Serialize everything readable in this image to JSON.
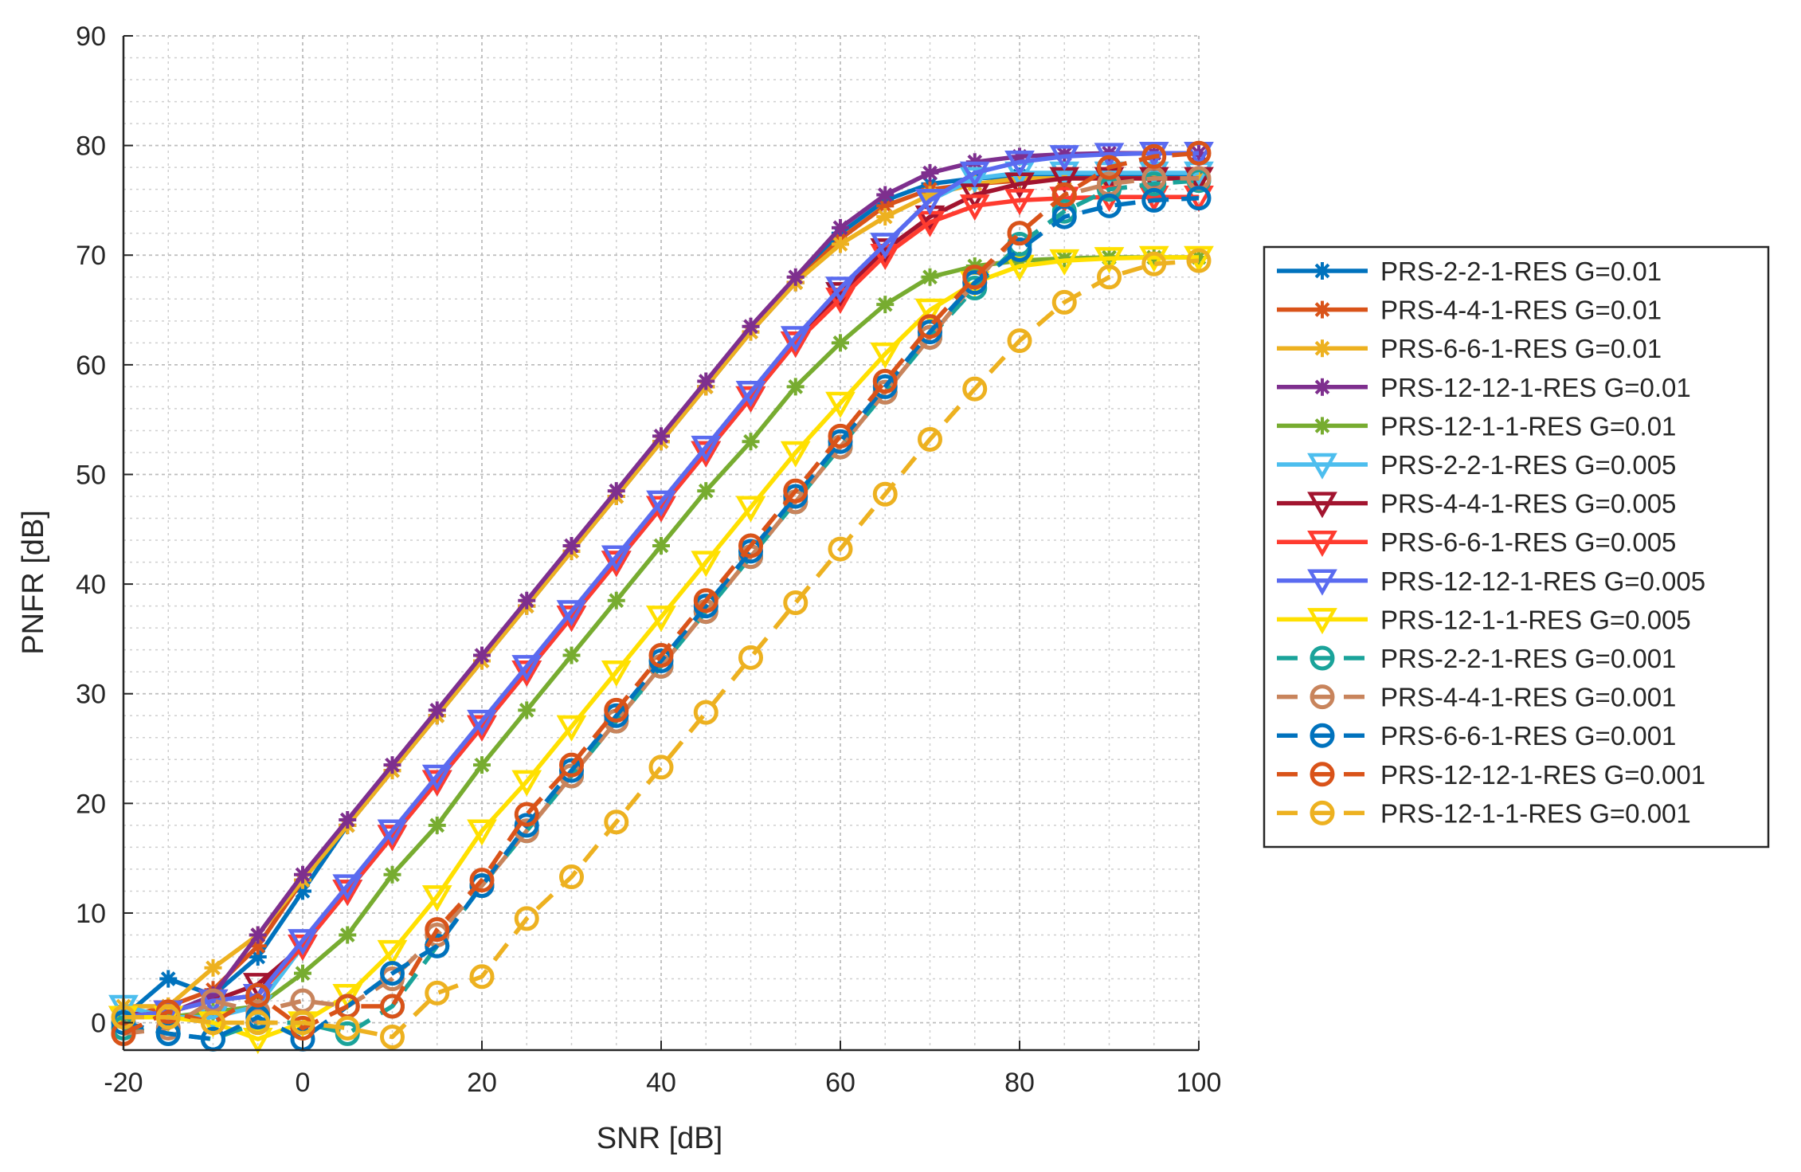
{
  "chart_data": {
    "type": "line",
    "title": "",
    "xlabel": "SNR [dB]",
    "ylabel": "PNFR [dB]",
    "xlim": [
      -20,
      100
    ],
    "ylim": [
      -2.5,
      90
    ],
    "xticks": [
      -20,
      0,
      20,
      40,
      60,
      80,
      100
    ],
    "yticks": [
      0,
      10,
      20,
      30,
      40,
      50,
      60,
      70,
      80,
      90
    ],
    "grid": true,
    "minor_grid": true,
    "legend_position": "right",
    "x": [
      -20,
      -15,
      -10,
      -5,
      0,
      5,
      10,
      15,
      20,
      25,
      30,
      35,
      40,
      45,
      50,
      55,
      60,
      65,
      70,
      75,
      80,
      85,
      90,
      95,
      100
    ],
    "series": [
      {
        "name": "PRS-2-2-1-RES G=0.01",
        "color": "#0072BD",
        "marker": "asterisk",
        "dash": "solid",
        "values": [
          0.5,
          4,
          2.5,
          6,
          12,
          18,
          23,
          28,
          33,
          38,
          43,
          48,
          53,
          58,
          63,
          67.5,
          72,
          75,
          76.5,
          77,
          77.2,
          77.3,
          77.3,
          77.3,
          77.3
        ]
      },
      {
        "name": "PRS-4-4-1-RES G=0.01",
        "color": "#D95319",
        "marker": "asterisk",
        "dash": "solid",
        "values": [
          0.5,
          1.5,
          3,
          7,
          13,
          18,
          23,
          28,
          33,
          38,
          43,
          48,
          53,
          58,
          63,
          67.5,
          71.5,
          74.5,
          76,
          76.5,
          76.8,
          77,
          77,
          77,
          77
        ]
      },
      {
        "name": "PRS-6-6-1-RES G=0.01",
        "color": "#EDB120",
        "marker": "asterisk",
        "dash": "solid",
        "values": [
          1.5,
          1.5,
          5,
          8,
          13,
          18,
          23,
          28,
          33,
          38,
          43,
          48,
          53,
          58,
          63,
          67.5,
          71,
          73.5,
          75.5,
          76.5,
          77,
          77,
          77,
          77,
          77
        ]
      },
      {
        "name": "PRS-12-12-1-RES G=0.01",
        "color": "#7E2F8E",
        "marker": "asterisk",
        "dash": "solid",
        "values": [
          0.8,
          0.8,
          2.5,
          8,
          13.5,
          18.5,
          23.5,
          28.5,
          33.5,
          38.5,
          43.5,
          48.5,
          53.5,
          58.5,
          63.5,
          68,
          72.5,
          75.5,
          77.5,
          78.5,
          79,
          79.2,
          79.3,
          79.3,
          79.3
        ]
      },
      {
        "name": "PRS-12-1-1-RES G=0.01",
        "color": "#77AC30",
        "marker": "asterisk",
        "dash": "solid",
        "values": [
          0.5,
          0.5,
          1,
          1.5,
          4.5,
          8,
          13.5,
          18,
          23.5,
          28.5,
          33.5,
          38.5,
          43.5,
          48.5,
          53,
          58,
          62,
          65.5,
          68,
          69,
          69.5,
          69.7,
          69.8,
          69.8,
          69.8
        ]
      },
      {
        "name": "PRS-2-2-1-RES G=0.005",
        "color": "#4DBEEE",
        "marker": "triangle-down",
        "dash": "solid",
        "values": [
          1.5,
          0.5,
          0.5,
          1.5,
          7,
          12,
          17,
          22,
          27,
          32,
          37,
          42,
          47,
          52,
          57,
          62,
          66.5,
          71,
          75,
          77,
          77.5,
          77.5,
          77.5,
          77.5,
          77.5
        ]
      },
      {
        "name": "PRS-4-4-1-RES G=0.005",
        "color": "#A2142F",
        "marker": "triangle-down",
        "dash": "solid",
        "values": [
          0.5,
          1,
          2,
          3.5,
          7,
          12,
          17,
          22,
          27,
          32,
          37,
          42,
          47,
          52,
          57,
          62,
          66.5,
          70.5,
          73.5,
          75.5,
          76.5,
          77,
          77,
          77,
          77
        ]
      },
      {
        "name": "PRS-6-6-1-RES G=0.005",
        "color": "#FF3B2F",
        "marker": "triangle-down",
        "dash": "solid",
        "values": [
          0.5,
          1,
          2,
          2.5,
          7,
          12,
          17,
          22,
          27,
          32,
          37,
          42,
          47,
          52,
          57,
          62,
          66,
          70,
          73,
          74.5,
          75,
          75.2,
          75.3,
          75.3,
          75.3
        ]
      },
      {
        "name": "PRS-12-12-1-RES G=0.005",
        "color": "#5A6BF0",
        "marker": "triangle-down",
        "dash": "solid",
        "values": [
          0.5,
          1,
          2,
          2.5,
          7.5,
          12.5,
          17.5,
          22.5,
          27.5,
          32.5,
          37.5,
          42.5,
          47.5,
          52.5,
          57.5,
          62.5,
          67,
          71,
          75,
          77.5,
          78.5,
          79,
          79.2,
          79.3,
          79.3
        ]
      },
      {
        "name": "PRS-12-1-1-RES G=0.005",
        "color": "#FFE000",
        "marker": "triangle-down",
        "dash": "solid",
        "values": [
          0.5,
          0.5,
          0,
          -1.5,
          0,
          2.5,
          6.5,
          11.5,
          17.5,
          22,
          27,
          32,
          37,
          42,
          47,
          52,
          56.5,
          61,
          65,
          67.5,
          69,
          69.5,
          69.7,
          69.8,
          69.8
        ]
      },
      {
        "name": "PRS-2-2-1-RES G=0.001",
        "color": "#1AA39A",
        "marker": "circle",
        "dash": "dashed",
        "values": [
          -0.5,
          -1,
          -1.5,
          0,
          0,
          -1,
          1.5,
          7,
          12.5,
          17.5,
          22.5,
          27.5,
          32.5,
          37.5,
          42.5,
          47.5,
          52.5,
          57.5,
          62.5,
          67,
          71,
          74,
          76,
          76.5,
          76.8
        ]
      },
      {
        "name": "PRS-4-4-1-RES G=0.001",
        "color": "#C8845C",
        "marker": "circle",
        "dash": "dashed",
        "values": [
          -1,
          -0.5,
          2,
          1,
          2,
          1.5,
          4,
          8,
          12.5,
          17.5,
          22.5,
          27.5,
          32.5,
          37.5,
          42.5,
          47.5,
          52.5,
          57.5,
          62.5,
          67.5,
          72,
          75.5,
          76.5,
          77,
          77
        ]
      },
      {
        "name": "PRS-6-6-1-RES G=0.001",
        "color": "#0072BD",
        "marker": "circle",
        "dash": "dashed",
        "values": [
          0,
          -1,
          -1.5,
          0.5,
          -1.5,
          1.5,
          4.5,
          7,
          12.5,
          18,
          23,
          28,
          33,
          38,
          43,
          48,
          53,
          58,
          63,
          67.5,
          70.5,
          73.5,
          74.5,
          75,
          75.2
        ]
      },
      {
        "name": "PRS-12-12-1-RES G=0.001",
        "color": "#D95319",
        "marker": "circle",
        "dash": "dashed",
        "values": [
          -1,
          1,
          0,
          2.5,
          -0.5,
          1.5,
          1.5,
          8.5,
          13,
          19,
          23.5,
          28.5,
          33.5,
          38.5,
          43.5,
          48.5,
          53.5,
          58.5,
          63.5,
          68,
          72,
          75.5,
          78,
          79,
          79.3
        ]
      },
      {
        "name": "PRS-12-1-1-RES G=0.001",
        "color": "#EDB120",
        "marker": "circle",
        "dash": "dashed",
        "values": [
          0.5,
          0.5,
          0,
          0,
          0,
          -0.5,
          -1.3,
          2.7,
          4.2,
          9.5,
          13.3,
          18.3,
          23.3,
          28.3,
          33.3,
          38.3,
          43.2,
          48.2,
          53.2,
          57.8,
          62.2,
          65.7,
          68,
          69.2,
          69.5
        ]
      }
    ]
  }
}
